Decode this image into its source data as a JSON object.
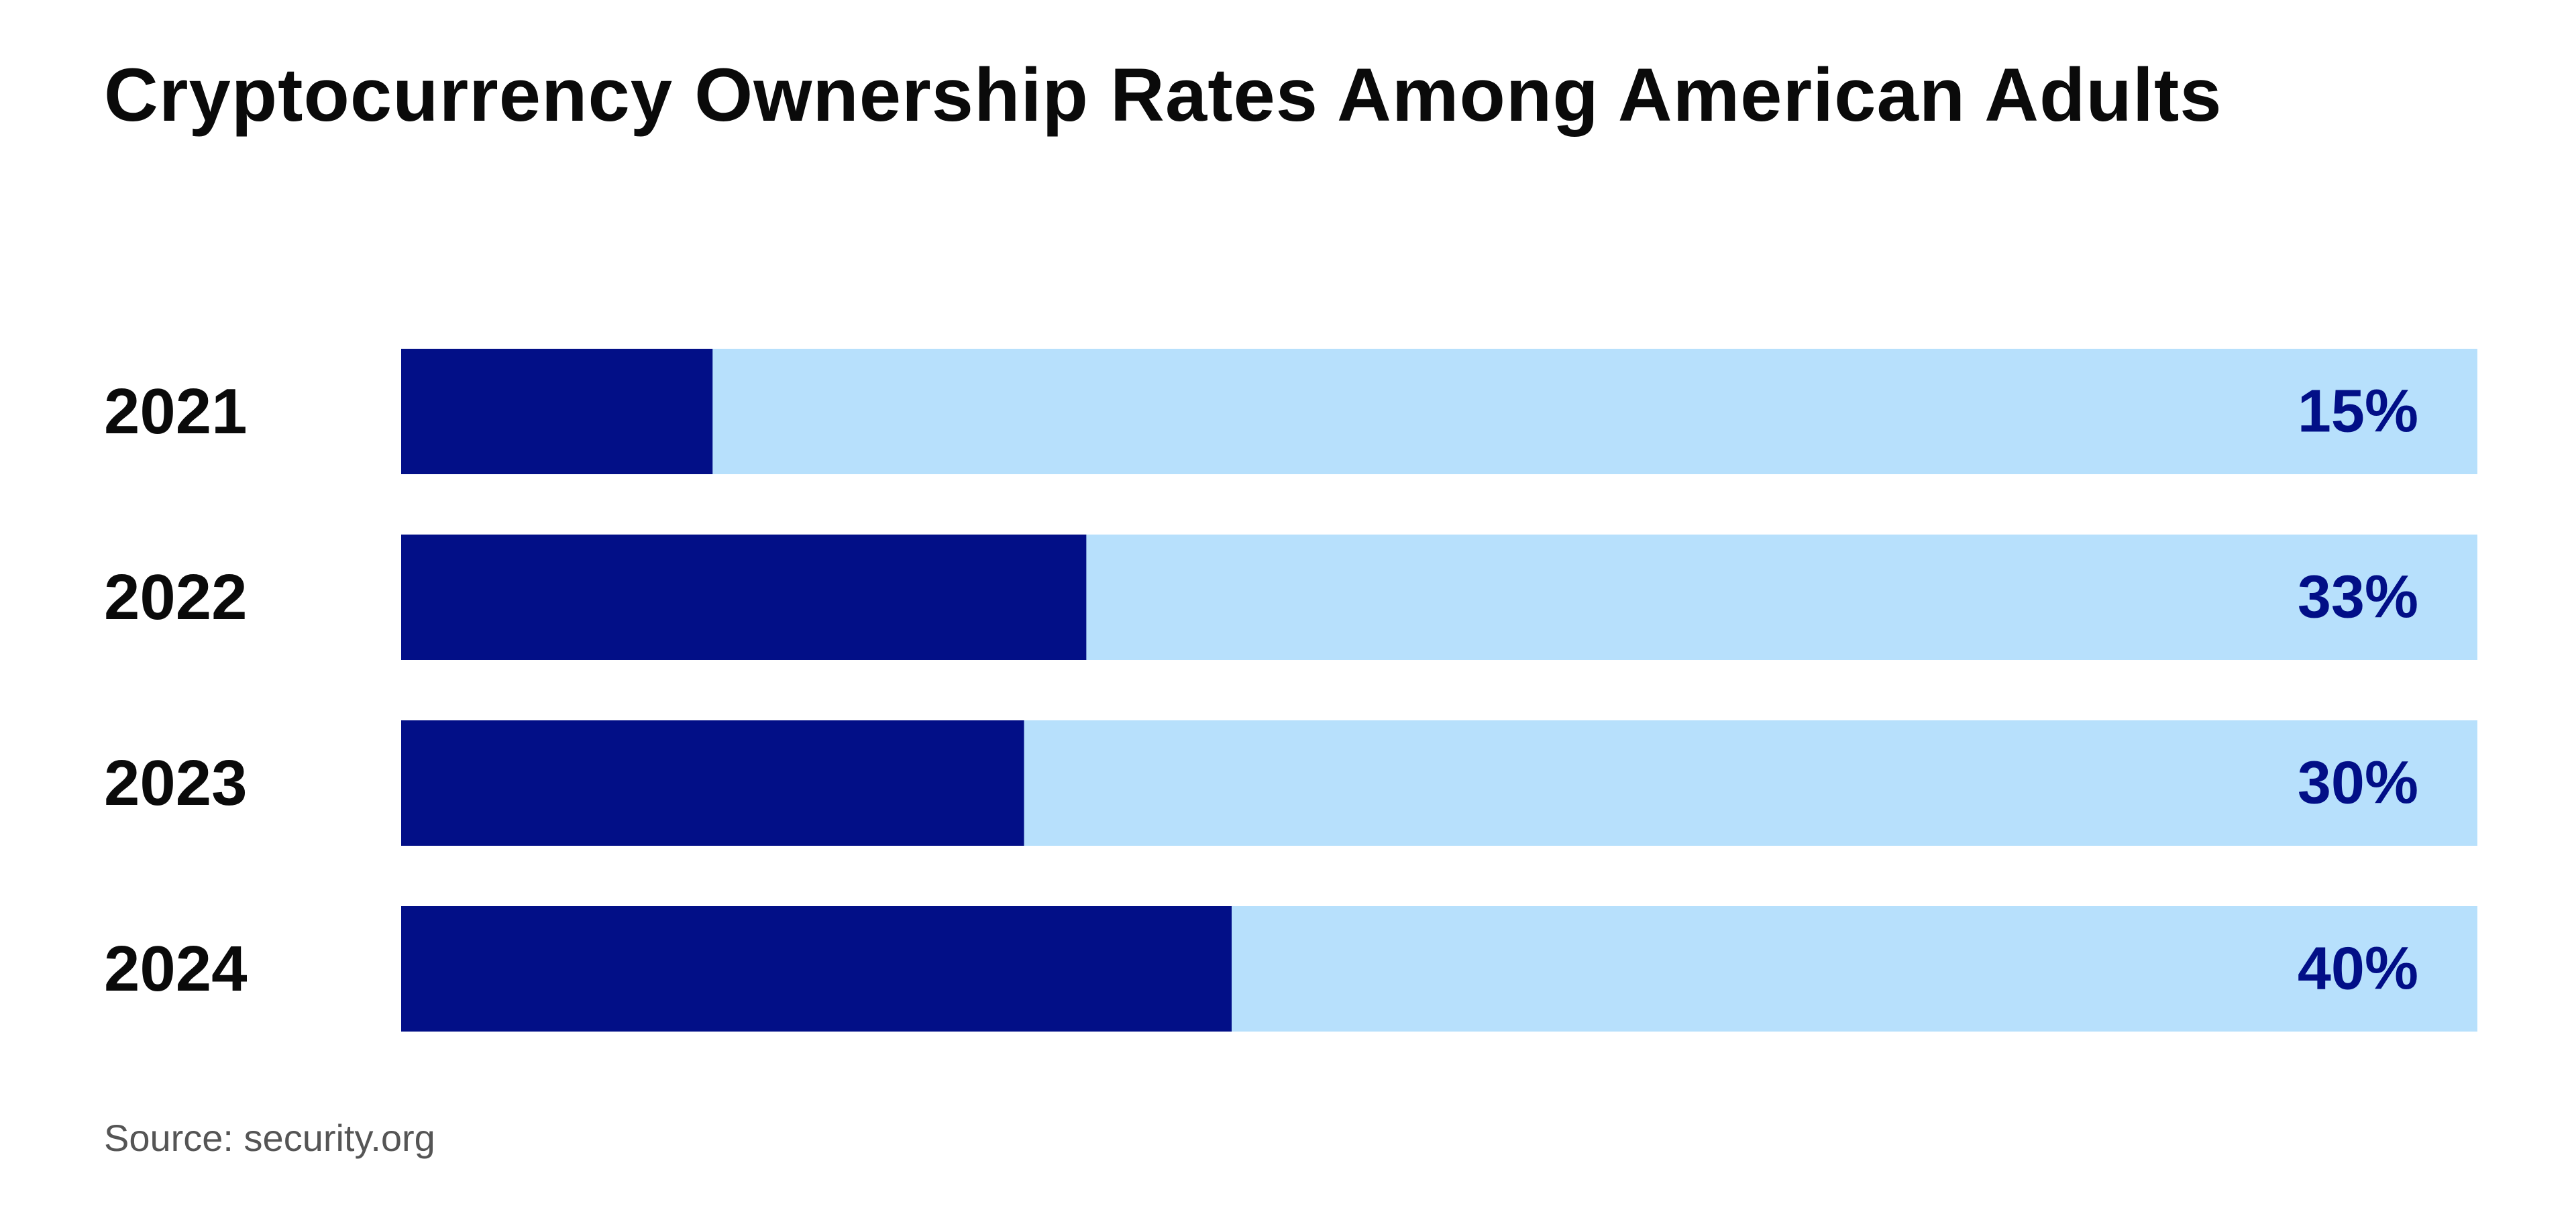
{
  "chart_data": {
    "type": "bar",
    "orientation": "horizontal",
    "title": "Cryptocurrency Ownership Rates Among American Adults",
    "categories": [
      "2021",
      "2022",
      "2023",
      "2024"
    ],
    "values": [
      15,
      33,
      30,
      40
    ],
    "value_labels": [
      "15%",
      "33%",
      "30%",
      "40%"
    ],
    "xlim": [
      0,
      100
    ],
    "unit": "%",
    "grid": false,
    "colors": {
      "bar": "#020F87",
      "track": "#B7E0FC",
      "value_text": "#020F87",
      "label_text": "#0A0A0A"
    }
  },
  "source": "Source: security.org"
}
